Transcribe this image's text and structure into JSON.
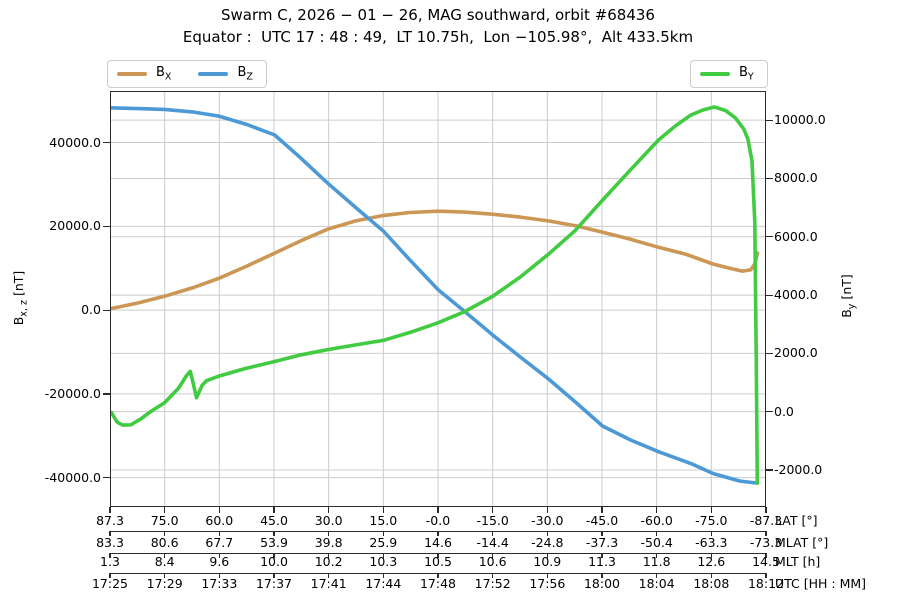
{
  "title": {
    "line1": "Swarm C, 2026 − 01 − 26, MAG southward, orbit #68436",
    "line2": "Equator :  UTC 17 : 48 : 49,  LT 10.75h,  Lon −105.98°,  Alt 433.5km"
  },
  "legend_left": {
    "items": [
      {
        "base": "B",
        "sub": "X",
        "color": "#cc9755"
      },
      {
        "base": "B",
        "sub": "Z",
        "color": "#4c99d6"
      }
    ]
  },
  "legend_right": {
    "items": [
      {
        "base": "B",
        "sub": "Y",
        "color": "#40cb40"
      }
    ]
  },
  "chart_data": {
    "type": "line",
    "title": "Swarm C, 2026 − 01 − 26, MAG southward, orbit #68436",
    "subtitle": "Equator : UTC 17 : 48 : 49, LT 10.75h, Lon −105.98°, Alt 433.5km",
    "grid": "on",
    "grid_color": "#cccccc",
    "spine_color": "#2b2b2b",
    "x_axis": {
      "unit": "minutes after 17:25 UTC",
      "range": [
        0,
        47
      ],
      "tick_count": 13
    },
    "left_axis": {
      "label": {
        "base": "B",
        "sub": "x, z",
        "unit": "[nT]"
      },
      "ticks": [
        40000,
        20000,
        0,
        -20000,
        -40000
      ],
      "tick_labels": [
        "40000.0",
        "20000.0",
        "0.0",
        "-20000.0",
        "-40000.0"
      ],
      "ylim": [
        -47000,
        52300
      ]
    },
    "right_axis": {
      "label": {
        "base": "B",
        "sub": "y",
        "unit": "[nT]"
      },
      "ticks": [
        10000,
        8000,
        6000,
        4000,
        2000,
        0,
        -2000
      ],
      "tick_labels": [
        "10000.0",
        "8000.0",
        "6000.0",
        "4000.0",
        "2000.0",
        "0.0",
        "-2000.0"
      ],
      "ylim": [
        -3270,
        11000
      ]
    },
    "bottom_rows": [
      {
        "label": "LAT [°]",
        "values": [
          "87.3",
          "75.0",
          "60.0",
          "45.0",
          "30.0",
          "15.0",
          "-0.0",
          "-15.0",
          "-30.0",
          "-45.0",
          "-60.0",
          "-75.0",
          "-87.3"
        ]
      },
      {
        "label": "MLAT [°]",
        "values": [
          "83.3",
          "80.6",
          "67.7",
          "53.9",
          "39.8",
          "25.9",
          "14.6",
          "-14.4",
          "-24.8",
          "-37.3",
          "-50.4",
          "-63.3",
          "-73.3"
        ]
      },
      {
        "label": "MLT [h]",
        "values": [
          "1.3",
          "8.4",
          "9.6",
          "10.0",
          "10.2",
          "10.3",
          "10.5",
          "10.6",
          "10.9",
          "11.3",
          "11.8",
          "12.6",
          "14.5"
        ]
      },
      {
        "label": "UTC [HH : MM]",
        "values": [
          "17:25",
          "17:29",
          "17:33",
          "17:37",
          "17:41",
          "17:44",
          "17:48",
          "17:52",
          "17:56",
          "18:00",
          "18:04",
          "18:08",
          "18:12"
        ]
      }
    ],
    "series": [
      {
        "name": "BX",
        "axis": "left",
        "color": "#cc9755",
        "points": [
          [
            0,
            300
          ],
          [
            2,
            1700
          ],
          [
            3.9,
            3300
          ],
          [
            5.9,
            5300
          ],
          [
            7.8,
            7600
          ],
          [
            9.8,
            10500
          ],
          [
            11.8,
            13600
          ],
          [
            13.7,
            16600
          ],
          [
            15.6,
            19300
          ],
          [
            17.6,
            21300
          ],
          [
            19.6,
            22600
          ],
          [
            21.5,
            23300
          ],
          [
            23.5,
            23600
          ],
          [
            25.4,
            23400
          ],
          [
            27.4,
            22900
          ],
          [
            29.4,
            22200
          ],
          [
            31.4,
            21300
          ],
          [
            33.4,
            20100
          ],
          [
            35.3,
            18600
          ],
          [
            37.3,
            16900
          ],
          [
            39.3,
            15000
          ],
          [
            41.3,
            13300
          ],
          [
            43.2,
            11000
          ],
          [
            44.4,
            10000
          ],
          [
            45.3,
            9300
          ],
          [
            45.9,
            9600
          ],
          [
            46.2,
            11000
          ],
          [
            46.4,
            13600
          ]
        ]
      },
      {
        "name": "BZ",
        "axis": "left",
        "color": "#4c99d6",
        "points": [
          [
            0,
            48300
          ],
          [
            2,
            48100
          ],
          [
            3.9,
            47900
          ],
          [
            5.9,
            47300
          ],
          [
            7.8,
            46300
          ],
          [
            9.8,
            44300
          ],
          [
            11.8,
            41800
          ],
          [
            13.6,
            36500
          ],
          [
            15.6,
            30300
          ],
          [
            17.6,
            24500
          ],
          [
            19.6,
            18800
          ],
          [
            21.5,
            11900
          ],
          [
            23.5,
            4900
          ],
          [
            25.4,
            -300
          ],
          [
            27.4,
            -5900
          ],
          [
            29.4,
            -11200
          ],
          [
            31.4,
            -16400
          ],
          [
            33.4,
            -22100
          ],
          [
            35.3,
            -27700
          ],
          [
            37.3,
            -31000
          ],
          [
            39.3,
            -33800
          ],
          [
            41.6,
            -36600
          ],
          [
            43.2,
            -39000
          ],
          [
            45.1,
            -40800
          ],
          [
            46.35,
            -41300
          ]
        ]
      },
      {
        "name": "BY",
        "axis": "right",
        "color": "#40cb40",
        "points": [
          [
            0.1,
            -30
          ],
          [
            0.5,
            -350
          ],
          [
            0.9,
            -460
          ],
          [
            1.5,
            -450
          ],
          [
            2.2,
            -250
          ],
          [
            2.9,
            0
          ],
          [
            3.9,
            300
          ],
          [
            4.9,
            800
          ],
          [
            5.5,
            1250
          ],
          [
            5.75,
            1380
          ],
          [
            6.0,
            900
          ],
          [
            6.2,
            480
          ],
          [
            6.6,
            900
          ],
          [
            6.9,
            1060
          ],
          [
            7.8,
            1220
          ],
          [
            9.7,
            1480
          ],
          [
            11.8,
            1720
          ],
          [
            13.7,
            1950
          ],
          [
            15.6,
            2130
          ],
          [
            17.6,
            2290
          ],
          [
            19.6,
            2450
          ],
          [
            21.5,
            2720
          ],
          [
            23.5,
            3050
          ],
          [
            25.4,
            3430
          ],
          [
            27.4,
            3950
          ],
          [
            29.4,
            4620
          ],
          [
            31.4,
            5400
          ],
          [
            33.3,
            6200
          ],
          [
            35.3,
            7260
          ],
          [
            37.3,
            8300
          ],
          [
            39.3,
            9320
          ],
          [
            40.5,
            9800
          ],
          [
            41.6,
            10170
          ],
          [
            42.5,
            10350
          ],
          [
            43.3,
            10450
          ],
          [
            44.1,
            10330
          ],
          [
            44.8,
            10080
          ],
          [
            45.4,
            9700
          ],
          [
            45.7,
            9350
          ],
          [
            46.0,
            8600
          ],
          [
            46.2,
            6500
          ],
          [
            46.3,
            2000
          ],
          [
            46.38,
            -2450
          ]
        ]
      }
    ]
  }
}
